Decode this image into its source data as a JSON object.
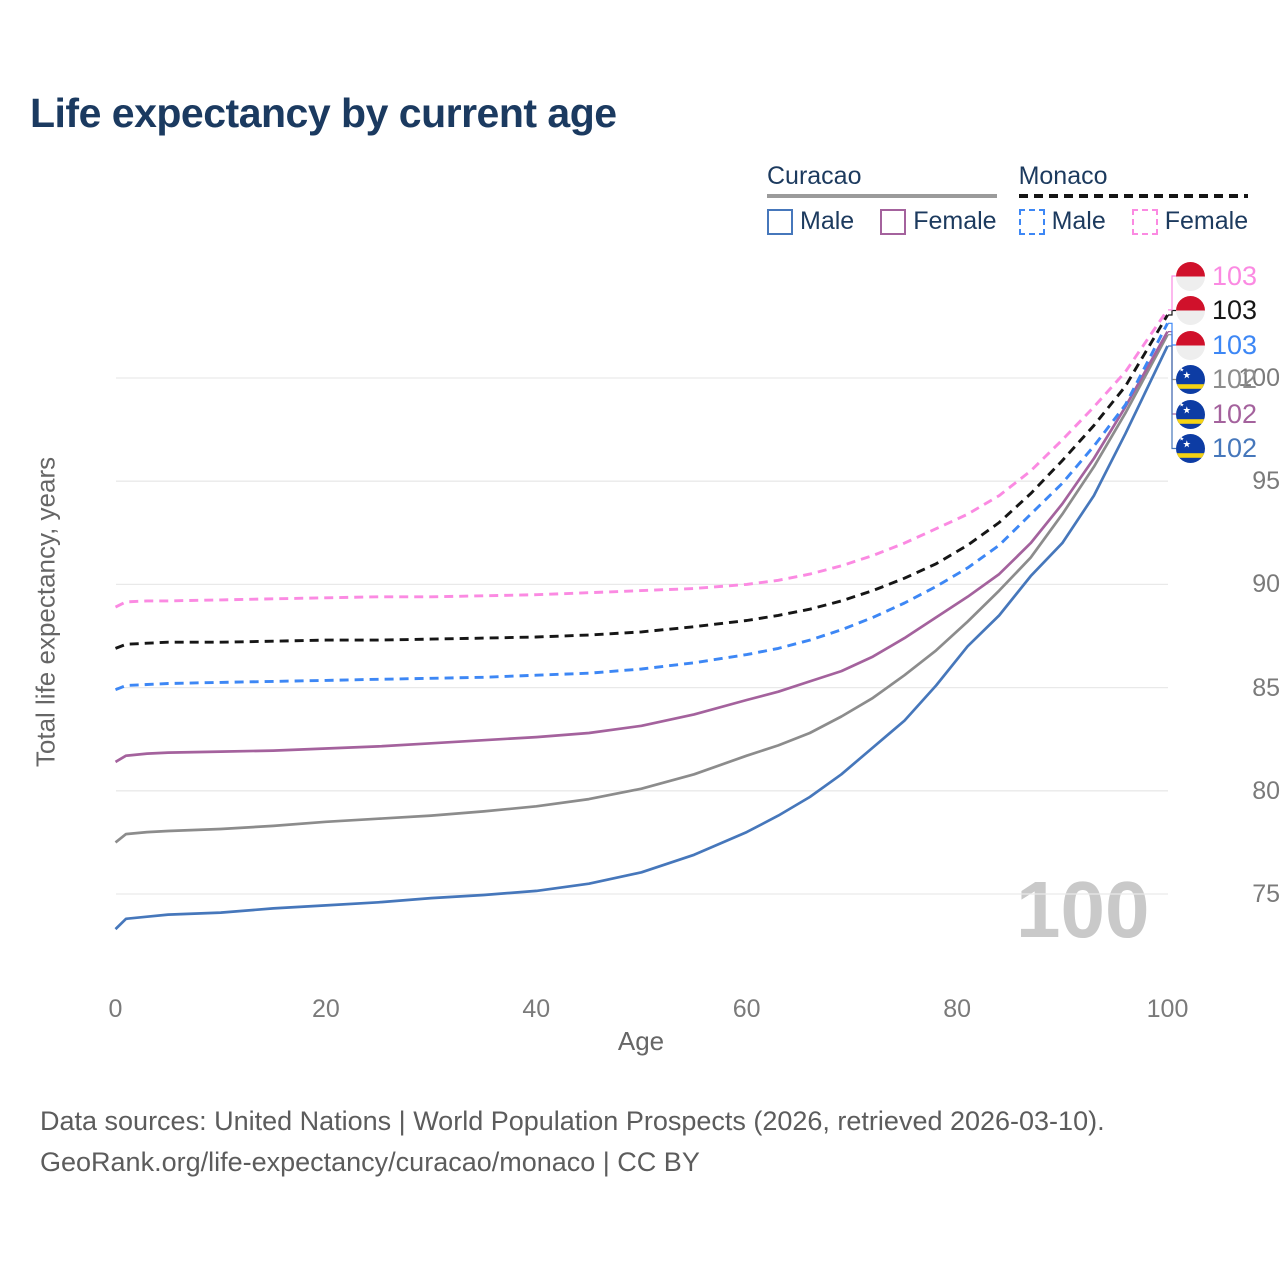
{
  "title": "Life expectancy by current age",
  "legend": {
    "groups": [
      {
        "name": "Curacao",
        "line_style": "solid",
        "underline_color": "#9b9b9b",
        "items": [
          {
            "label": "Male",
            "color": "#4677bb",
            "dashed": false
          },
          {
            "label": "Female",
            "color": "#a4629d",
            "dashed": false
          }
        ]
      },
      {
        "name": "Monaco",
        "line_style": "dashed",
        "underline_color": "#151515",
        "items": [
          {
            "label": "Male",
            "color": "#3d87f5",
            "dashed": true
          },
          {
            "label": "Female",
            "color": "#fb8ae2",
            "dashed": true
          }
        ]
      }
    ]
  },
  "y_axis": {
    "title": "Total life expectancy, years",
    "ticks": [
      75,
      80,
      85,
      90,
      95,
      100
    ]
  },
  "x_axis": {
    "title": "Age",
    "ticks": [
      0,
      20,
      40,
      60,
      80,
      100
    ]
  },
  "watermark": "100",
  "footer": {
    "line1": "Data sources: United Nations | World Population Prospects (2026, retrieved 2026-03-10).",
    "line2": "GeoRank.org/life-expectancy/curacao/monaco | CC BY"
  },
  "flag_colors": {
    "monaco_red": "#d0112b",
    "monaco_white": "#eeeeee",
    "curacao_blue": "#0d3ca4",
    "curacao_yellow": "#f5d313",
    "curacao_star": "#ffffff"
  },
  "chart_data": {
    "type": "line",
    "title": "Life expectancy by current age",
    "xlabel": "Age",
    "ylabel": "Total life expectancy, years",
    "x_range": [
      0,
      100
    ],
    "y_range": [
      72,
      104
    ],
    "grid": true,
    "legend_position": "top-right",
    "x": [
      0,
      1,
      3,
      5,
      10,
      15,
      20,
      25,
      30,
      35,
      40,
      45,
      50,
      55,
      60,
      63,
      66,
      69,
      72,
      75,
      78,
      81,
      84,
      87,
      90,
      93,
      96,
      100
    ],
    "series": [
      {
        "name": "Curacao Both sexes",
        "country": "curacao",
        "sex": "both",
        "color": "#8c8c8c",
        "dashed": false,
        "end_label": "102",
        "label_row": 3,
        "values": [
          77.5,
          77.9,
          78.0,
          78.05,
          78.15,
          78.3,
          78.5,
          78.65,
          78.8,
          79.0,
          79.25,
          79.6,
          80.1,
          80.8,
          81.7,
          82.2,
          82.8,
          83.6,
          84.5,
          85.6,
          86.8,
          88.2,
          89.7,
          91.3,
          93.4,
          95.7,
          98.3,
          102.1
        ]
      },
      {
        "name": "Curacao Female",
        "country": "curacao",
        "sex": "female",
        "color": "#a4629d",
        "dashed": false,
        "end_label": "102",
        "label_row": 4,
        "values": [
          81.4,
          81.7,
          81.8,
          81.85,
          81.9,
          81.95,
          82.05,
          82.15,
          82.3,
          82.45,
          82.6,
          82.8,
          83.15,
          83.7,
          84.4,
          84.8,
          85.3,
          85.8,
          86.5,
          87.4,
          88.4,
          89.4,
          90.5,
          92.0,
          93.9,
          96.1,
          98.6,
          102.25
        ]
      },
      {
        "name": "Curacao Male",
        "country": "curacao",
        "sex": "male",
        "color": "#4677bb",
        "dashed": false,
        "end_label": "102",
        "label_row": 5,
        "values": [
          73.3,
          73.8,
          73.9,
          74.0,
          74.1,
          74.3,
          74.45,
          74.6,
          74.8,
          74.95,
          75.15,
          75.5,
          76.05,
          76.9,
          78.0,
          78.8,
          79.7,
          80.8,
          82.1,
          83.4,
          85.1,
          87.0,
          88.5,
          90.4,
          92.0,
          94.3,
          97.3,
          101.55
        ]
      },
      {
        "name": "Monaco Male",
        "country": "monaco",
        "sex": "male",
        "color": "#3d87f5",
        "dashed": true,
        "end_label": "103",
        "label_row": 2,
        "values": [
          84.9,
          85.1,
          85.15,
          85.2,
          85.25,
          85.3,
          85.35,
          85.4,
          85.45,
          85.5,
          85.6,
          85.7,
          85.9,
          86.2,
          86.6,
          86.9,
          87.3,
          87.8,
          88.4,
          89.1,
          89.9,
          90.8,
          91.9,
          93.4,
          94.9,
          96.7,
          98.7,
          102.65
        ]
      },
      {
        "name": "Monaco Both sexes",
        "country": "monaco",
        "sex": "both",
        "color": "#161616",
        "dashed": true,
        "end_label": "103",
        "label_row": 1,
        "values": [
          86.9,
          87.1,
          87.15,
          87.2,
          87.2,
          87.25,
          87.3,
          87.3,
          87.35,
          87.4,
          87.45,
          87.55,
          87.7,
          87.95,
          88.25,
          88.5,
          88.8,
          89.2,
          89.7,
          90.3,
          91.0,
          91.9,
          93.0,
          94.4,
          96.0,
          97.7,
          99.6,
          103.05
        ]
      },
      {
        "name": "Monaco Female",
        "country": "monaco",
        "sex": "female",
        "color": "#fb8ae2",
        "dashed": true,
        "end_label": "103",
        "label_row": 0,
        "values": [
          88.9,
          89.15,
          89.2,
          89.2,
          89.25,
          89.3,
          89.35,
          89.4,
          89.4,
          89.45,
          89.5,
          89.6,
          89.7,
          89.8,
          90.0,
          90.2,
          90.5,
          90.9,
          91.4,
          92.0,
          92.7,
          93.4,
          94.3,
          95.5,
          97.0,
          98.6,
          100.3,
          103.3
        ]
      }
    ]
  }
}
